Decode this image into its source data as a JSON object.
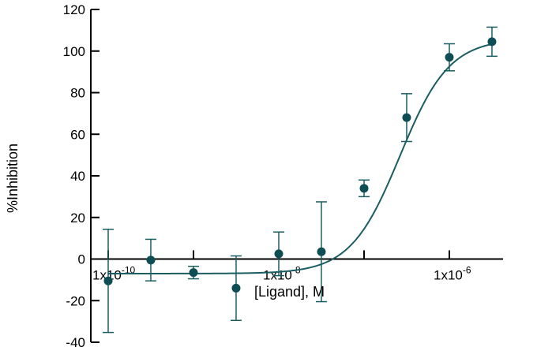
{
  "chart_data": {
    "type": "scatter",
    "xlabel": "[Ligand], M",
    "ylabel": "%Inhibition",
    "xscale": "log",
    "ylim": [
      -40,
      120
    ],
    "yticks": [
      -40,
      -20,
      0,
      20,
      40,
      60,
      80,
      100,
      120
    ],
    "xticks": [
      {
        "value": 1e-10,
        "mantissa": "1x10",
        "exponent": "-10",
        "label": "1x10-10"
      },
      {
        "value": 1e-08,
        "mantissa": "1x10",
        "exponent": "-8",
        "label": "1x10-8"
      },
      {
        "value": 1e-06,
        "mantissa": "1x10",
        "exponent": "-6",
        "label": "1x10-6"
      }
    ],
    "series": [
      {
        "points": [
          {
            "x": 1e-10,
            "y": -10.5,
            "err": 24.8
          },
          {
            "x": 3.16e-10,
            "y": -0.5,
            "err": 10
          },
          {
            "x": 1e-09,
            "y": -6.5,
            "err": 3
          },
          {
            "x": 3.16e-09,
            "y": -14,
            "err": 15.5
          },
          {
            "x": 1e-08,
            "y": 2.5,
            "err": 10.5
          },
          {
            "x": 3.16e-08,
            "y": 3.5,
            "err": 24
          },
          {
            "x": 1e-07,
            "y": 34,
            "err": 4
          },
          {
            "x": 3.16e-07,
            "y": 68,
            "err": 11.5
          },
          {
            "x": 1e-06,
            "y": 97,
            "err": 6.5
          },
          {
            "x": 3.16e-06,
            "y": 104.5,
            "err": 7
          }
        ]
      }
    ],
    "fit": {
      "model": "sigmoidal dose-response",
      "bottom": -7,
      "top": 106,
      "logEC50": -6.58,
      "hill": 1.5
    },
    "colors": {
      "series": "#0e4d53",
      "curve": "#1a5e63",
      "axes": "#000000"
    }
  }
}
